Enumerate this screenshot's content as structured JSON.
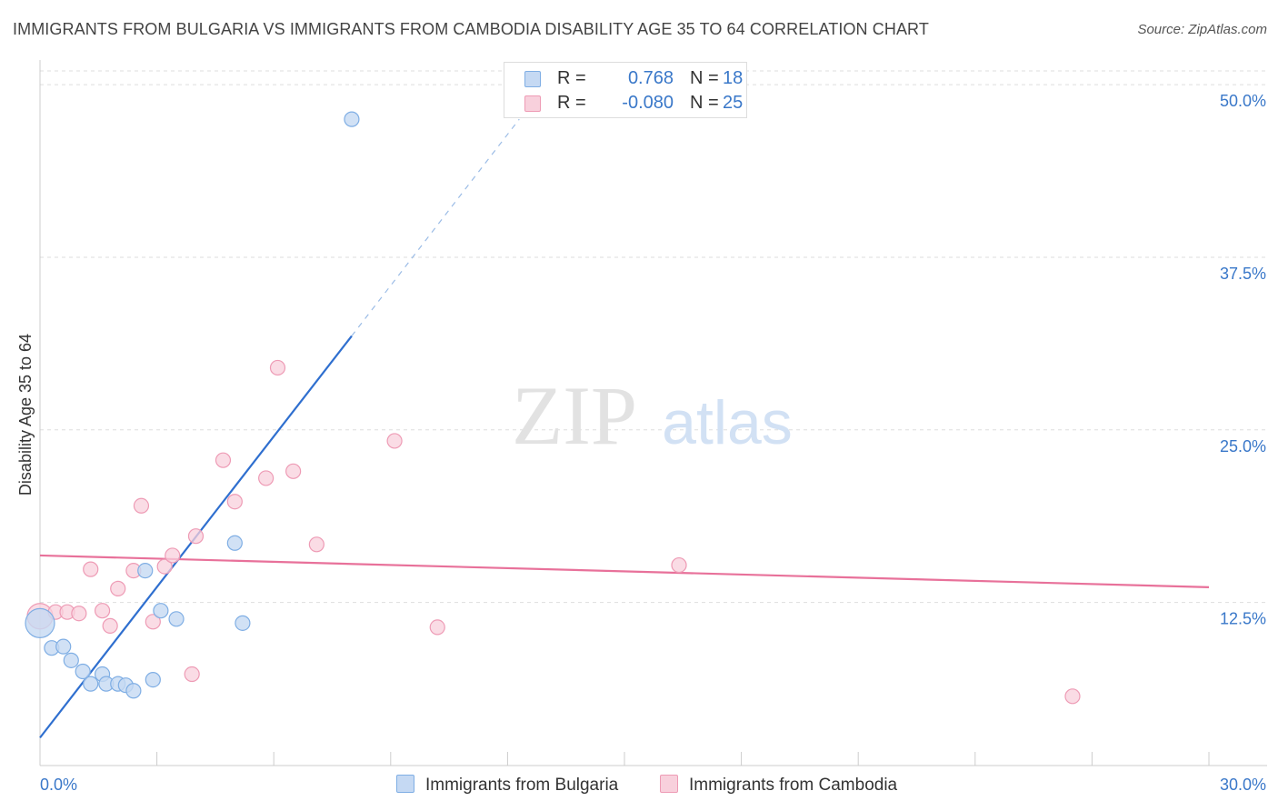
{
  "title": "IMMIGRANTS FROM BULGARIA VS IMMIGRANTS FROM CAMBODIA DISABILITY AGE 35 TO 64 CORRELATION CHART",
  "source": "Source: ZipAtlas.com",
  "watermark": {
    "zip": "ZIP",
    "atlas": "atlas"
  },
  "legend": {
    "bulgaria": {
      "r_label": "R =",
      "r_value": "0.768",
      "n_label": "N =",
      "n_value": "18"
    },
    "cambodia": {
      "r_label": "R =",
      "r_value": "-0.080",
      "n_label": "N =",
      "n_value": "25"
    }
  },
  "colors": {
    "bulgaria_fill": "#c5d9f3",
    "bulgaria_stroke": "#7faee4",
    "bulgaria_line": "#2f6fcf",
    "cambodia_fill": "#f8d0dc",
    "cambodia_stroke": "#ee9bb5",
    "cambodia_line": "#e8719a",
    "tick_label": "#3a78c9",
    "grid": "#dddddd"
  },
  "chart_data": {
    "type": "scatter",
    "title": "IMMIGRANTS FROM BULGARIA VS IMMIGRANTS FROM CAMBODIA DISABILITY AGE 35 TO 64 CORRELATION CHART",
    "xlabel": "",
    "ylabel": "Disability Age 35 to 64",
    "xlim": [
      0,
      30
    ],
    "ylim": [
      2,
      51
    ],
    "x_tick_labels": [
      "0.0%",
      "30.0%"
    ],
    "y_ticks": [
      12.5,
      25.0,
      37.5,
      50.0
    ],
    "y_tick_labels": [
      "12.5%",
      "25.0%",
      "37.5%",
      "50.0%"
    ],
    "series": [
      {
        "name": "Immigrants from Bulgaria",
        "points": [
          {
            "x": 0.0,
            "y": 11.0
          },
          {
            "x": 0.3,
            "y": 9.2
          },
          {
            "x": 0.6,
            "y": 9.3
          },
          {
            "x": 0.8,
            "y": 8.3
          },
          {
            "x": 1.1,
            "y": 7.5
          },
          {
            "x": 1.3,
            "y": 6.6
          },
          {
            "x": 1.6,
            "y": 7.3
          },
          {
            "x": 1.7,
            "y": 6.6
          },
          {
            "x": 2.0,
            "y": 6.6
          },
          {
            "x": 2.2,
            "y": 6.5
          },
          {
            "x": 2.4,
            "y": 6.1
          },
          {
            "x": 2.7,
            "y": 14.8
          },
          {
            "x": 2.9,
            "y": 6.9
          },
          {
            "x": 3.1,
            "y": 11.9
          },
          {
            "x": 3.5,
            "y": 11.3
          },
          {
            "x": 5.0,
            "y": 16.8
          },
          {
            "x": 5.2,
            "y": 11.0
          },
          {
            "x": 8.0,
            "y": 47.5
          }
        ],
        "trend": {
          "x0": 0.0,
          "y0": 2.7,
          "x1": 8.0,
          "y1": 31.8,
          "dash_x1": 12.3,
          "dash_y1": 47.5
        }
      },
      {
        "name": "Immigrants from Cambodia",
        "points": [
          {
            "x": 0.0,
            "y": 11.5
          },
          {
            "x": 0.4,
            "y": 11.8
          },
          {
            "x": 0.7,
            "y": 11.8
          },
          {
            "x": 1.0,
            "y": 11.7
          },
          {
            "x": 1.3,
            "y": 14.9
          },
          {
            "x": 1.6,
            "y": 11.9
          },
          {
            "x": 1.8,
            "y": 10.8
          },
          {
            "x": 2.0,
            "y": 13.5
          },
          {
            "x": 2.4,
            "y": 14.8
          },
          {
            "x": 2.6,
            "y": 19.5
          },
          {
            "x": 2.9,
            "y": 11.1
          },
          {
            "x": 3.2,
            "y": 15.1
          },
          {
            "x": 3.4,
            "y": 15.9
          },
          {
            "x": 3.9,
            "y": 7.3
          },
          {
            "x": 4.0,
            "y": 17.3
          },
          {
            "x": 4.7,
            "y": 22.8
          },
          {
            "x": 5.0,
            "y": 19.8
          },
          {
            "x": 5.8,
            "y": 21.5
          },
          {
            "x": 6.1,
            "y": 29.5
          },
          {
            "x": 6.5,
            "y": 22.0
          },
          {
            "x": 7.1,
            "y": 16.7
          },
          {
            "x": 9.1,
            "y": 24.2
          },
          {
            "x": 10.2,
            "y": 10.7
          },
          {
            "x": 16.4,
            "y": 15.2
          },
          {
            "x": 26.5,
            "y": 5.7
          }
        ],
        "trend": {
          "x0": 0.0,
          "y0": 15.9,
          "x1": 30.0,
          "y1": 13.6
        }
      }
    ]
  }
}
